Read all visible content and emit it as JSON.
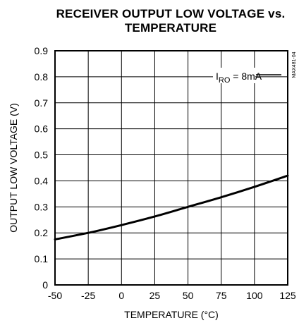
{
  "chart_data": {
    "type": "line",
    "title": "RECEIVER OUTPUT LOW VOLTAGE vs.",
    "title_line2": "TEMPERATURE",
    "xlabel": "TEMPERATURE (°C)",
    "ylabel": "OUTPUT LOW VOLTAGE (V)",
    "xlim": [
      -50,
      125
    ],
    "ylim": [
      0,
      0.9
    ],
    "xticks": [
      "-50",
      "-25",
      "0",
      "25",
      "50",
      "75",
      "100",
      "125"
    ],
    "yticks": [
      "0",
      "0.1",
      "0.2",
      "0.3",
      "0.4",
      "0.5",
      "0.6",
      "0.7",
      "0.8",
      "0.9"
    ],
    "grid": true,
    "annotation": {
      "prefix": "I",
      "subscript": "RO",
      "suffix": " = 8mA"
    },
    "figure_code": "MAX481-04",
    "series": [
      {
        "x": [
          -50,
          -25,
          0,
          25,
          50,
          75,
          100,
          125
        ],
        "y": [
          0.175,
          0.2,
          0.23,
          0.263,
          0.3,
          0.337,
          0.377,
          0.42
        ]
      }
    ]
  }
}
